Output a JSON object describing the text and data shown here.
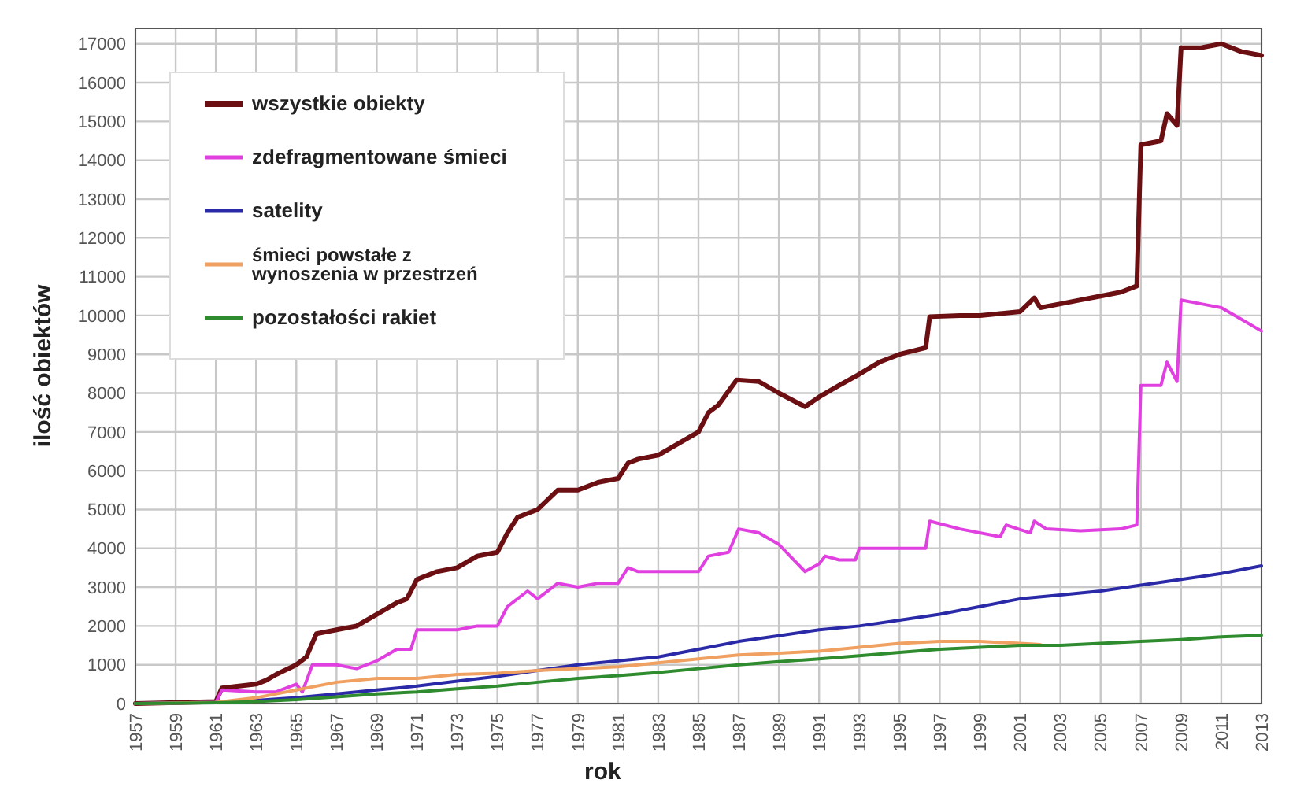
{
  "chart_data": {
    "type": "line",
    "xlabel": "rok",
    "ylabel": "ilość obiektów",
    "xlim": [
      1957,
      2013
    ],
    "ylim": [
      0,
      17400
    ],
    "xticks": [
      1957,
      1959,
      1961,
      1963,
      1965,
      1967,
      1969,
      1971,
      1973,
      1975,
      1977,
      1979,
      1981,
      1983,
      1985,
      1987,
      1989,
      1991,
      1993,
      1995,
      1997,
      1999,
      2001,
      2003,
      2005,
      2007,
      2009,
      2011,
      2013
    ],
    "yticks": [
      0,
      1000,
      2000,
      3000,
      4000,
      5000,
      6000,
      7000,
      8000,
      9000,
      10000,
      11000,
      12000,
      13000,
      14000,
      15000,
      16000,
      17000
    ],
    "grid": true,
    "legend": "top left",
    "marker": "none",
    "line_style": "solid",
    "series": [
      {
        "name": "wszystkie obiekty",
        "color": "#6b0f12",
        "x": [
          1957,
          1961,
          1961.3,
          1963,
          1963.5,
          1964,
          1965,
          1965.5,
          1966,
          1967,
          1968,
          1969,
          1970,
          1970.5,
          1971,
          1972,
          1973,
          1974,
          1975,
          1975.5,
          1976,
          1977,
          1978,
          1979,
          1980,
          1981,
          1981.5,
          1982,
          1983,
          1984,
          1985,
          1985.5,
          1986,
          1986.9,
          1988,
          1989,
          1990.3,
          1991,
          1992,
          1992.9,
          1994,
          1995,
          1996.3,
          1996.5,
          1998,
          1999,
          2000,
          2001,
          2001.7,
          2002,
          2003,
          2004,
          2005,
          2006,
          2006.8,
          2007,
          2008,
          2008.3,
          2008.8,
          2009,
          2010,
          2011,
          2012,
          2013
        ],
        "values": [
          0,
          50,
          400,
          500,
          600,
          750,
          1000,
          1200,
          1800,
          1900,
          2000,
          2300,
          2600,
          2700,
          3200,
          3400,
          3500,
          3800,
          3900,
          4400,
          4800,
          5000,
          5500,
          5500,
          5700,
          5800,
          6200,
          6300,
          6400,
          6700,
          7000,
          7500,
          7700,
          8340,
          8300,
          8000,
          7650,
          7900,
          8200,
          8460,
          8800,
          9000,
          9170,
          9970,
          10000,
          10000,
          10050,
          10100,
          10450,
          10200,
          10300,
          10400,
          10500,
          10600,
          10760,
          14400,
          14500,
          15200,
          14900,
          16900,
          16900,
          17000,
          16800,
          16700
        ]
      },
      {
        "name": "zdefragmentowane śmieci",
        "color": "#e040e0",
        "x": [
          1957,
          1961,
          1961.3,
          1963,
          1964,
          1965,
          1965.3,
          1965.8,
          1967,
          1968,
          1969,
          1970,
          1970.7,
          1971,
          1973,
          1974,
          1975,
          1975.5,
          1976.5,
          1977,
          1978,
          1979,
          1980,
          1981,
          1981.5,
          1982,
          1985,
          1985.5,
          1986.5,
          1987,
          1988,
          1989,
          1990.3,
          1991,
          1991.3,
          1992,
          1992.8,
          1993,
          1995,
          1996.3,
          1996.5,
          1998,
          2000,
          2000.3,
          2001.5,
          2001.7,
          2002.3,
          2004,
          2006,
          2006.8,
          2007,
          2008,
          2008.3,
          2008.8,
          2009,
          2010,
          2011,
          2012,
          2013
        ],
        "values": [
          0,
          30,
          350,
          300,
          300,
          500,
          300,
          1000,
          1000,
          900,
          1100,
          1400,
          1400,
          1900,
          1900,
          2000,
          2000,
          2500,
          2900,
          2700,
          3100,
          3000,
          3100,
          3100,
          3500,
          3400,
          3400,
          3800,
          3900,
          4500,
          4400,
          4100,
          3400,
          3600,
          3800,
          3700,
          3700,
          4000,
          4000,
          4000,
          4700,
          4500,
          4300,
          4600,
          4400,
          4700,
          4500,
          4450,
          4500,
          4600,
          8200,
          8200,
          8800,
          8300,
          10400,
          10300,
          10200,
          9900,
          9600
        ]
      },
      {
        "name": "satelity",
        "color": "#2a2aa8",
        "x": [
          1957,
          1961,
          1963,
          1965,
          1967,
          1969,
          1971,
          1973,
          1975,
          1977,
          1979,
          1981,
          1983,
          1985,
          1987,
          1989,
          1991,
          1993,
          1995,
          1997,
          1999,
          2001,
          2003,
          2005,
          2007,
          2009,
          2011,
          2013
        ],
        "values": [
          0,
          30,
          80,
          150,
          250,
          350,
          450,
          580,
          700,
          850,
          1000,
          1100,
          1200,
          1400,
          1600,
          1750,
          1900,
          2000,
          2150,
          2300,
          2500,
          2700,
          2800,
          2900,
          3050,
          3200,
          3350,
          3550
        ]
      },
      {
        "name": "śmieci   powstałe z\nwynoszenia w przestrzeń",
        "color": "#f0a060",
        "x": [
          1957,
          1961,
          1963,
          1965,
          1967,
          1969,
          1971,
          1973,
          1975,
          1977,
          1979,
          1981,
          1983,
          1985,
          1987,
          1989,
          1991,
          1993,
          1995,
          1997,
          1999,
          2001,
          2002
        ],
        "values": [
          0,
          30,
          150,
          350,
          550,
          650,
          650,
          750,
          780,
          850,
          900,
          950,
          1050,
          1150,
          1250,
          1300,
          1350,
          1450,
          1550,
          1600,
          1600,
          1550,
          1520
        ]
      },
      {
        "name": "pozostałości rakiet",
        "color": "#2e8b2e",
        "x": [
          1957,
          1961,
          1963,
          1965,
          1967,
          1969,
          1971,
          1973,
          1975,
          1977,
          1979,
          1981,
          1983,
          1985,
          1987,
          1989,
          1991,
          1993,
          1995,
          1997,
          1999,
          2001,
          2003,
          2005,
          2007,
          2009,
          2011,
          2013
        ],
        "values": [
          0,
          20,
          50,
          100,
          170,
          250,
          300,
          380,
          450,
          550,
          650,
          720,
          800,
          900,
          1000,
          1080,
          1150,
          1230,
          1320,
          1400,
          1450,
          1500,
          1500,
          1550,
          1600,
          1650,
          1720,
          1760
        ]
      }
    ]
  }
}
